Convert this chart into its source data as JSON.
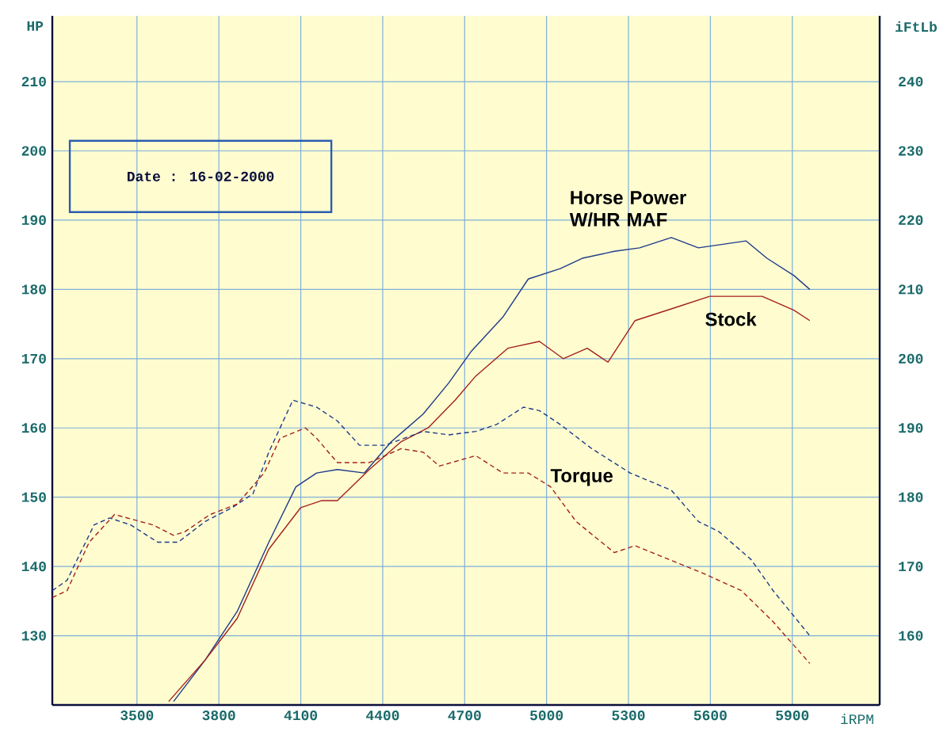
{
  "chart_data": {
    "type": "line",
    "xlabel": "iRPM",
    "ylabel": "HP",
    "y2label": "iFtLb",
    "xlim": [
      3190,
      6220
    ],
    "ylim": [
      120,
      219.5
    ],
    "y2lim": [
      150,
      249.5
    ],
    "xticks": [
      3500,
      3800,
      4100,
      4400,
      4700,
      5000,
      5300,
      5600,
      5900
    ],
    "yticks": [
      130,
      140,
      150,
      160,
      170,
      180,
      190,
      200,
      210
    ],
    "y2ticks": [
      160,
      170,
      180,
      190,
      200,
      210,
      220,
      230,
      240
    ],
    "grid": true,
    "series": [
      {
        "color": "#1f3a8a",
        "x": [
          3634,
          3750,
          3867,
          3983,
          4082,
          4158,
          4234,
          4333,
          4431,
          4548,
          4642,
          4723,
          4840,
          4933,
          5050,
          5131,
          5248,
          5341,
          5457,
          5556,
          5731,
          5807,
          5906,
          5964
        ],
        "values": [
          120.5,
          126.5,
          133.5,
          143.5,
          151.5,
          153.5,
          154,
          153.5,
          158,
          162,
          166.5,
          171,
          176,
          181.5,
          183,
          184.5,
          185.5,
          186,
          187.5,
          186,
          187,
          184.5,
          182,
          180
        ]
      },
      {
        "color": "#a3201c",
        "x": [
          3616,
          3750,
          3867,
          3983,
          4100,
          4175,
          4234,
          4351,
          4467,
          4566,
          4665,
          4741,
          4858,
          4974,
          5061,
          5149,
          5225,
          5324,
          5481,
          5597,
          5790,
          5906,
          5964
        ],
        "values": [
          120.5,
          126.5,
          132.5,
          142.5,
          148.5,
          149.5,
          149.5,
          154,
          158,
          160,
          164,
          167.5,
          171.5,
          172.5,
          170,
          171.5,
          169.5,
          175.5,
          177.5,
          179,
          179,
          177,
          175.5
        ]
      },
      {
        "color": "#1f3a8a",
        "axis": "y2",
        "line_style": "dashed",
        "x": [
          3190,
          3244,
          3343,
          3400,
          3477,
          3576,
          3651,
          3750,
          3849,
          3925,
          3983,
          4071,
          4158,
          4234,
          4315,
          4408,
          4548,
          4642,
          4741,
          4817,
          4916,
          4974,
          5050,
          5166,
          5306,
          5457,
          5556,
          5632,
          5749,
          5830,
          5964
        ],
        "values": [
          166.5,
          168,
          176,
          177,
          176,
          173.5,
          173.5,
          176.5,
          178.5,
          180.5,
          186.5,
          194,
          193,
          191,
          187.5,
          187.5,
          189.5,
          189,
          189.5,
          190.5,
          193,
          192.5,
          190.5,
          187,
          183.5,
          181,
          176.5,
          175,
          171,
          166.5,
          160
        ]
      },
      {
        "color": "#a3201c",
        "axis": "y2",
        "line_style": "dashed",
        "x": [
          3190,
          3244,
          3325,
          3418,
          3558,
          3634,
          3675,
          3768,
          3867,
          3966,
          4024,
          4117,
          4158,
          4234,
          4351,
          4467,
          4548,
          4607,
          4741,
          4840,
          4933,
          5015,
          5108,
          5248,
          5324,
          5481,
          5574,
          5714,
          5830,
          5964
        ],
        "values": [
          165.5,
          166.5,
          173.5,
          177.5,
          176,
          174.5,
          175,
          177.5,
          179,
          183.5,
          188.5,
          190,
          188.5,
          185,
          185,
          187,
          186.5,
          184.5,
          186,
          183.5,
          183.5,
          181.5,
          176.5,
          172,
          173,
          170.5,
          169,
          166.5,
          162,
          156
        ]
      }
    ],
    "annotations": [
      "Date   : 16-02-2000",
      "Horse Power W/HR MAF",
      "Stock",
      "Torque"
    ]
  }
}
